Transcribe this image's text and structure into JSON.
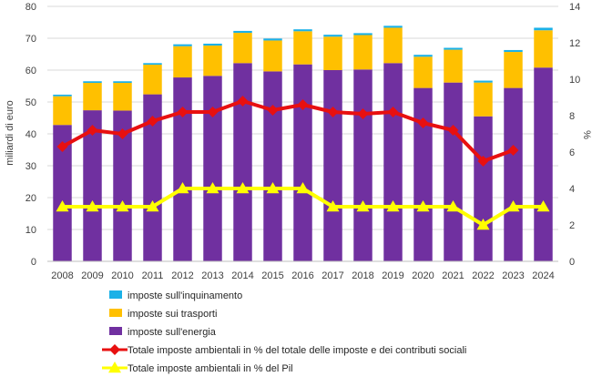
{
  "chart_data": {
    "type": "bar",
    "categories": [
      "2008",
      "2009",
      "2010",
      "2011",
      "2012",
      "2013",
      "2014",
      "2015",
      "2016",
      "2017",
      "2018",
      "2019",
      "2020",
      "2021",
      "2022",
      "2023",
      "2024"
    ],
    "ylabel": "miliardi di euro",
    "ylabel_right": "%",
    "ylim": [
      0,
      80
    ],
    "yticks": [
      0,
      10,
      20,
      30,
      40,
      50,
      60,
      70,
      80
    ],
    "ylim_right": [
      0,
      14
    ],
    "yticks_right": [
      0,
      2,
      4,
      6,
      8,
      10,
      12,
      14
    ],
    "grid": true,
    "legend_position": "bottom",
    "series": [
      {
        "name": "imposte sull'energia",
        "kind": "stacked-bar",
        "color": "#7030A0",
        "values": [
          42.8,
          47.4,
          47.3,
          52.4,
          57.7,
          58.2,
          62.2,
          59.6,
          61.8,
          60.0,
          60.2,
          62.2,
          54.4,
          56.1,
          45.5,
          54.4,
          60.8
        ]
      },
      {
        "name": "imposte sui trasporti",
        "kind": "stacked-bar",
        "color": "#FFC000",
        "values": [
          9.0,
          8.6,
          8.7,
          9.3,
          9.8,
          9.5,
          9.5,
          9.7,
          10.4,
          10.5,
          10.8,
          11.1,
          9.8,
          10.3,
          10.6,
          11.3,
          11.7
        ]
      },
      {
        "name": "imposte sull'inquinamento",
        "kind": "stacked-bar",
        "color": "#1BB1E7",
        "values": [
          0.5,
          0.5,
          0.5,
          0.5,
          0.6,
          0.6,
          0.6,
          0.6,
          0.6,
          0.6,
          0.6,
          0.6,
          0.6,
          0.6,
          0.6,
          0.6,
          0.8
        ]
      },
      {
        "name": "Totale imposte ambientali in % del totale delle imposte e dei contributi sociali",
        "kind": "line",
        "axis": "right",
        "color": "#E81010",
        "marker": "diamond",
        "values": [
          6.3,
          7.2,
          7.0,
          7.7,
          8.2,
          8.2,
          8.8,
          8.3,
          8.6,
          8.2,
          8.1,
          8.2,
          7.6,
          7.2,
          5.5,
          6.1,
          null
        ]
      },
      {
        "name": "Totale imposte ambientali in % del Pil",
        "kind": "line",
        "axis": "right",
        "color": "#FFFF00",
        "marker": "triangle",
        "values": [
          3.0,
          3.0,
          3.0,
          3.0,
          4.0,
          4.0,
          4.0,
          4.0,
          4.0,
          3.0,
          3.0,
          3.0,
          3.0,
          3.0,
          2.0,
          3.0,
          3.0
        ]
      }
    ],
    "legend_order": [
      2,
      1,
      0,
      3,
      4
    ]
  }
}
